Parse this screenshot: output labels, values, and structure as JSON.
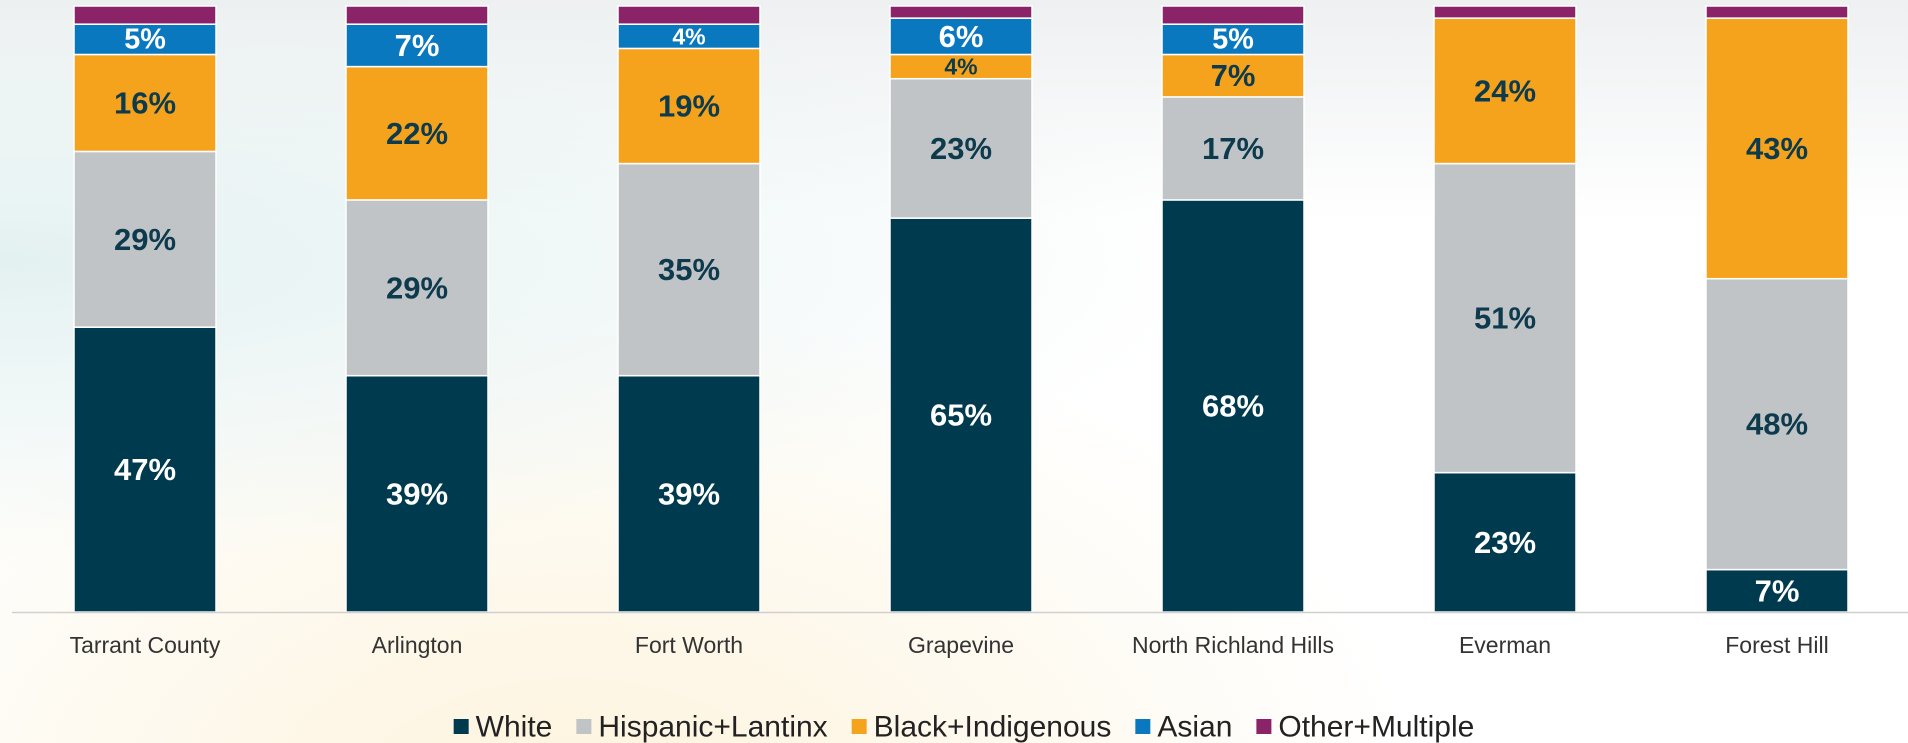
{
  "chart_data": {
    "type": "stacked_bar",
    "categories": [
      "Tarrant County",
      "Arlington",
      "Fort Worth",
      "Grapevine",
      "North Richland Hills",
      "Everman",
      "Forest Hill"
    ],
    "ylim": [
      0,
      100
    ],
    "legend": "bottom",
    "series": [
      {
        "name": "White",
        "color": "#003a4f",
        "label_color": "#ffffff",
        "values": [
          47,
          39,
          39,
          65,
          68,
          23,
          7
        ],
        "value_labels": [
          "47%",
          "39%",
          "39%",
          "65%",
          "68%",
          "23%",
          "7%"
        ]
      },
      {
        "name": "Hispanic+Lantinx",
        "color": "#c0c4c6",
        "label_color": "#0d3a4c",
        "values": [
          29,
          29,
          35,
          23,
          17,
          51,
          48
        ],
        "value_labels": [
          "29%",
          "29%",
          "35%",
          "23%",
          "17%",
          "51%",
          "48%"
        ]
      },
      {
        "name": "Black+Indigenous",
        "color": "#f5a31c",
        "label_color": "#0d3a4c",
        "values": [
          16,
          22,
          19,
          4,
          7,
          24,
          43
        ],
        "value_labels": [
          "16%",
          "22%",
          "19%",
          "4%",
          "7%",
          "24%",
          "43%"
        ]
      },
      {
        "name": "Asian",
        "color": "#0a78bf",
        "label_color": "#ffffff",
        "values": [
          5,
          7,
          4,
          6,
          5,
          0,
          0
        ],
        "value_labels": [
          "5%",
          "7%",
          "4%",
          "6%",
          "5%",
          null,
          null
        ]
      },
      {
        "name": "Other+Multiple",
        "color": "#8b2368",
        "values": [
          3,
          3,
          3,
          2,
          3,
          2,
          2
        ]
      }
    ]
  }
}
